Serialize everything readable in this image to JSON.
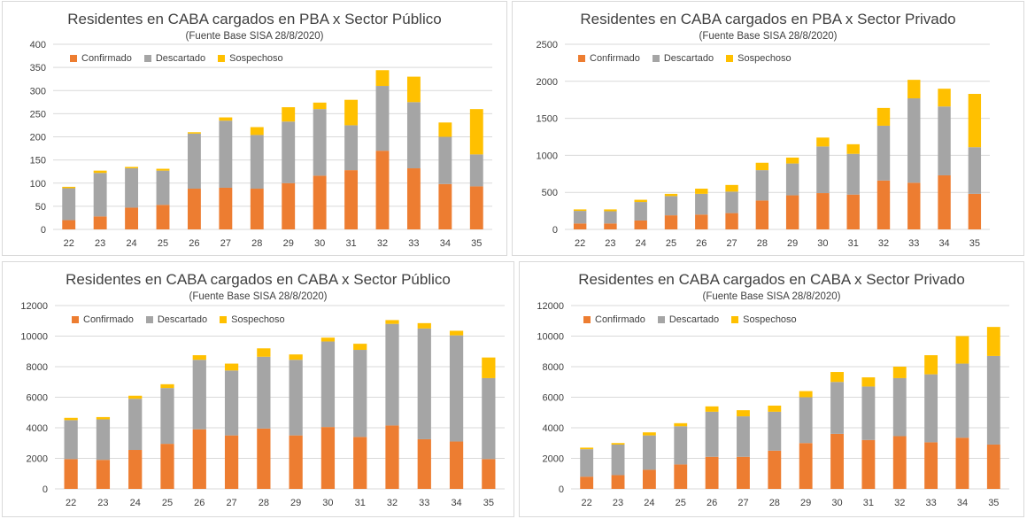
{
  "colors": {
    "confirmado": "#ED7D31",
    "descartado": "#A5A5A5",
    "sospechoso": "#FFC000",
    "grid": "#d9d9d9",
    "text": "#404040"
  },
  "chart_data": [
    {
      "type": "bar",
      "stacked": true,
      "title": "Residentes en CABA cargados en PBA x Sector Público",
      "subtitle": "(Fuente  Base SISA 28/8/2020)",
      "categories": [
        "22",
        "23",
        "24",
        "25",
        "26",
        "27",
        "28",
        "29",
        "30",
        "31",
        "32",
        "33",
        "34",
        "35"
      ],
      "ylim": [
        0,
        400
      ],
      "yticks": [
        0,
        50,
        100,
        150,
        200,
        250,
        300,
        350,
        400
      ],
      "legend_position": "top-left",
      "grid": true,
      "series": [
        {
          "name": "Confirmado",
          "values": [
            20,
            28,
            47,
            53,
            88,
            90,
            88,
            100,
            116,
            128,
            170,
            132,
            98,
            93
          ]
        },
        {
          "name": "Descartado",
          "values": [
            69,
            94,
            85,
            74,
            119,
            145,
            116,
            133,
            144,
            97,
            140,
            143,
            102,
            69
          ]
        },
        {
          "name": "Sospechoso",
          "values": [
            3,
            5,
            3,
            4,
            3,
            7,
            17,
            31,
            14,
            55,
            34,
            55,
            31,
            98
          ]
        }
      ]
    },
    {
      "type": "bar",
      "stacked": true,
      "title": "Residentes en CABA cargados en PBA x Sector Privado",
      "subtitle": "(Fuente  Base SISA 28/8/2020)",
      "categories": [
        "22",
        "23",
        "24",
        "25",
        "26",
        "27",
        "28",
        "29",
        "30",
        "31",
        "32",
        "33",
        "34",
        "35"
      ],
      "ylim": [
        0,
        2500
      ],
      "yticks": [
        0,
        500,
        1000,
        1500,
        2000,
        2500
      ],
      "legend_position": "top-left",
      "grid": true,
      "series": [
        {
          "name": "Confirmado",
          "values": [
            80,
            80,
            120,
            190,
            200,
            220,
            390,
            460,
            490,
            470,
            660,
            630,
            730,
            480
          ]
        },
        {
          "name": "Descartado",
          "values": [
            170,
            165,
            250,
            260,
            280,
            290,
            410,
            430,
            630,
            550,
            740,
            1140,
            930,
            630
          ]
        },
        {
          "name": "Sospechoso",
          "values": [
            20,
            25,
            30,
            30,
            70,
            90,
            100,
            80,
            120,
            130,
            240,
            250,
            240,
            720
          ]
        }
      ]
    },
    {
      "type": "bar",
      "stacked": true,
      "title": "Residentes en CABA cargados en CABA x Sector Público",
      "subtitle": "(Fuente  Base SISA 28/8/2020)",
      "categories": [
        "22",
        "23",
        "24",
        "25",
        "26",
        "27",
        "28",
        "29",
        "30",
        "31",
        "32",
        "33",
        "34",
        "35"
      ],
      "ylim": [
        0,
        12000
      ],
      "yticks": [
        0,
        2000,
        4000,
        6000,
        8000,
        10000,
        12000
      ],
      "legend_position": "top-left",
      "grid": true,
      "series": [
        {
          "name": "Confirmado",
          "values": [
            1950,
            1900,
            2550,
            2950,
            3900,
            3500,
            3950,
            3500,
            4050,
            3400,
            4150,
            3250,
            3100,
            1950
          ]
        },
        {
          "name": "Descartado",
          "values": [
            2550,
            2650,
            3350,
            3650,
            4550,
            4250,
            4700,
            4950,
            5600,
            5700,
            6650,
            7250,
            6950,
            5300
          ]
        },
        {
          "name": "Sospechoso",
          "values": [
            150,
            150,
            200,
            250,
            300,
            450,
            550,
            350,
            250,
            400,
            250,
            350,
            300,
            1350
          ]
        }
      ]
    },
    {
      "type": "bar",
      "stacked": true,
      "title": "Residentes en CABA cargados en CABA x Sector Privado",
      "subtitle": "(Fuente  Base SISA 28/8/2020)",
      "categories": [
        "22",
        "23",
        "24",
        "25",
        "26",
        "27",
        "28",
        "29",
        "30",
        "31",
        "32",
        "33",
        "34",
        "35"
      ],
      "ylim": [
        0,
        12000
      ],
      "yticks": [
        0,
        2000,
        4000,
        6000,
        8000,
        10000,
        12000
      ],
      "legend_position": "top-left",
      "grid": true,
      "series": [
        {
          "name": "Confirmado",
          "values": [
            800,
            900,
            1250,
            1600,
            2100,
            2100,
            2500,
            3000,
            3600,
            3200,
            3450,
            3050,
            3350,
            2900
          ]
        },
        {
          "name": "Descartado",
          "values": [
            1800,
            2000,
            2250,
            2500,
            2950,
            2650,
            2550,
            3000,
            3400,
            3500,
            3800,
            4450,
            4850,
            5800
          ]
        },
        {
          "name": "Sospechoso",
          "values": [
            100,
            100,
            200,
            200,
            350,
            400,
            400,
            400,
            650,
            600,
            750,
            1250,
            1800,
            1900
          ]
        }
      ]
    }
  ]
}
